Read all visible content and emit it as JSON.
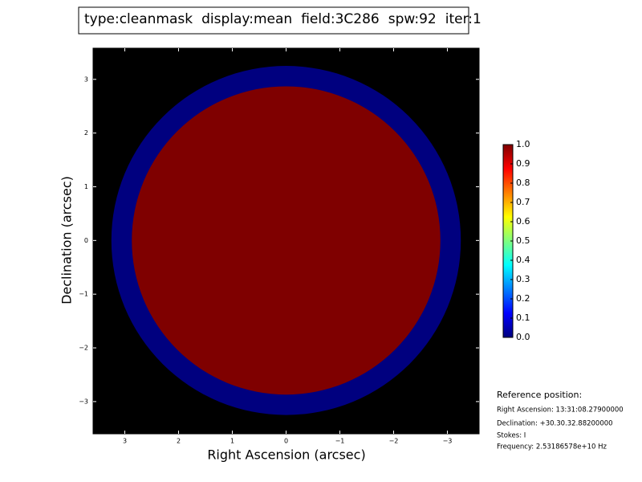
{
  "chart_data": {
    "type": "image",
    "title_parts": [
      {
        "text": "type:cleanmask",
        "color": "#000000"
      },
      {
        "text": "display:mean",
        "color": "#ff0000"
      },
      {
        "text": "field:3C286",
        "color": "#000000"
      },
      {
        "text": "spw:92",
        "color": "#000000"
      },
      {
        "text": "iter:1",
        "color": "#000000"
      }
    ],
    "xlabel": "Right Ascension (arcsec)",
    "ylabel": "Declination (arcsec)",
    "background": "#000000",
    "xlim": [
      3.59,
      -3.59
    ],
    "ylim": [
      -3.6,
      3.58
    ],
    "xticks": [
      3,
      2,
      1,
      0,
      {
        "value": -1,
        "label": "−1"
      },
      {
        "value": -2,
        "label": "−2"
      },
      {
        "value": -3,
        "label": "−3"
      }
    ],
    "yticks": [
      {
        "value": -3,
        "label": "−3"
      },
      {
        "value": -2,
        "label": "−2"
      },
      {
        "value": -1,
        "label": "−1"
      },
      0,
      1,
      2,
      3
    ],
    "regions": [
      {
        "radius": 3.25,
        "value": 0,
        "color": "#00007f"
      },
      {
        "radius": 2.87,
        "value": 1,
        "color": "#7f0000"
      }
    ],
    "colorbar": {
      "colors": [
        "#00007f",
        "#0000ff",
        "#007fff",
        "#00ffff",
        "#7fff7f",
        "#ffff00",
        "#ff7f00",
        "#ff0000",
        "#7f0000"
      ],
      "lim": [
        0,
        1
      ],
      "ticks": [
        {
          "value": 0,
          "label": "0.0"
        },
        0.1,
        0.2,
        0.3,
        0.4,
        0.5,
        0.6,
        0.7,
        0.8,
        0.9,
        {
          "value": 1,
          "label": "1.0"
        }
      ]
    },
    "annotations": [
      "Reference position:",
      "Right Ascension: 13:31:08.27900000",
      "Declination: +30.30.32.88200000",
      "Stokes: I",
      "Frequency: 2.53186578e+10 Hz"
    ]
  }
}
